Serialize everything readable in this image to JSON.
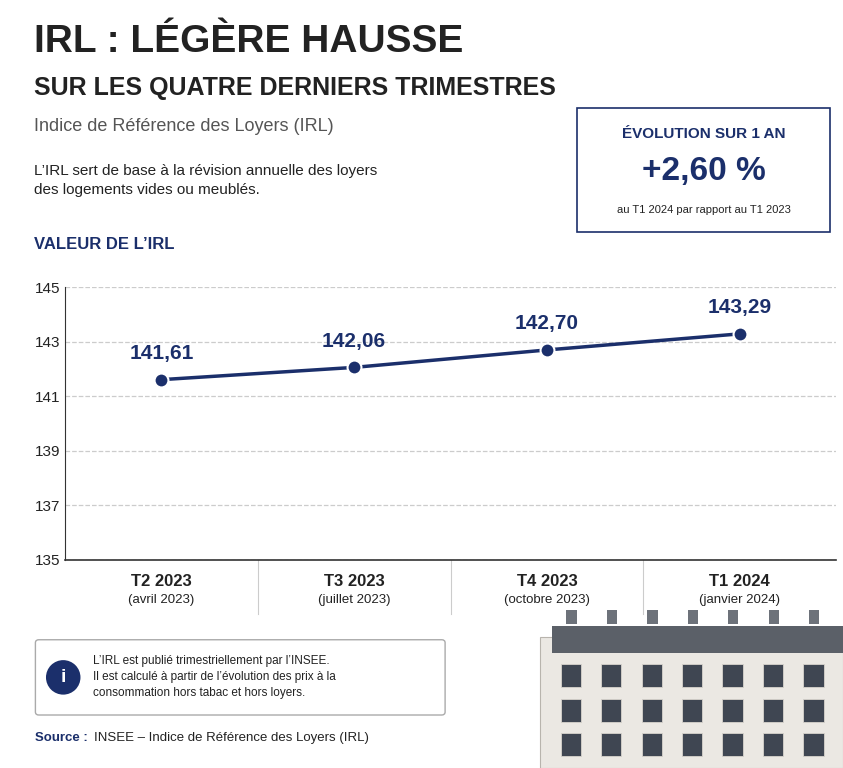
{
  "header": {
    "title": "IRL : LÉGÈRE HAUSSE",
    "title_line2": "SUR LES QUATRE DERNIERS TRIMESTRES",
    "subtitle": "Indice de Référence des Loyers (IRL)",
    "description": "L’IRL sert de base à la révision annuelle des loyers des logements vides ou meublés."
  },
  "highlight": {
    "heading": "ÉVOLUTION SUR 1 AN",
    "value": "+2,60 %",
    "note": "au T1 2024 par rapport au T1 2023"
  },
  "chart_data": {
    "type": "line",
    "title": "VALEUR DE L’IRL",
    "categories": [
      "T2 2023",
      "T3 2023",
      "T4 2023",
      "T1 2024"
    ],
    "category_notes": [
      "(avril 2023)",
      "(juillet 2023)",
      "(octobre 2023)",
      "(janvier 2024)"
    ],
    "values": [
      141.61,
      142.06,
      142.7,
      143.29
    ],
    "value_labels": [
      "141,61",
      "142,06",
      "142,70",
      "143,29"
    ],
    "color": "#1b2f6b",
    "marker": "o",
    "line_style": "solid",
    "ylim": [
      135,
      145
    ],
    "yticks": [
      135,
      137,
      139,
      141,
      143,
      145
    ],
    "grid": true,
    "data_labels": true
  },
  "info": {
    "icon": "i",
    "lines": [
      "L’IRL est publié trimestriellement par l’INSEE.",
      "Il est calculé à partir de l’évolution des prix à la consommation hors tabac et hors loyers."
    ]
  },
  "source": {
    "label": "Source :",
    "text": "INSEE – Indice de Référence des Loyers (IRL)"
  }
}
